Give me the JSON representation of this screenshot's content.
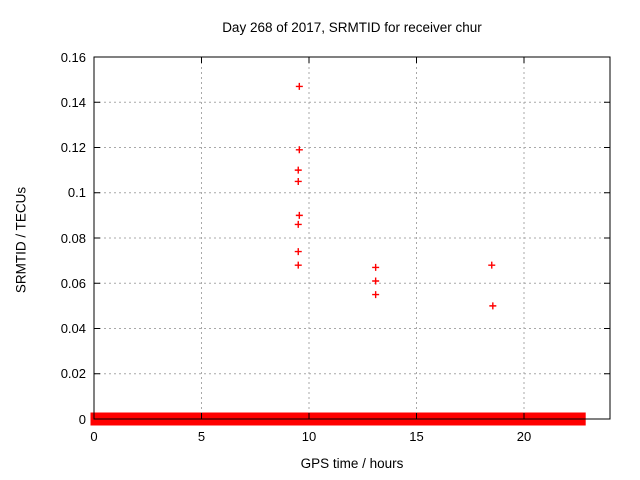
{
  "chart_data": {
    "type": "scatter",
    "title": "Day 268 of 2017, SRMTID for receiver chur",
    "xlabel": "GPS time / hours",
    "ylabel": "SRMTID / TECUs",
    "xlim": [
      0,
      24
    ],
    "ylim": [
      0,
      0.16
    ],
    "xticks": [
      0,
      5,
      10,
      15,
      20
    ],
    "xtick_labels": [
      "0",
      "5",
      "10",
      "15",
      "20"
    ],
    "yticks": [
      0,
      0.02,
      0.04,
      0.06,
      0.08,
      0.1,
      0.12,
      0.14,
      0.16
    ],
    "ytick_labels": [
      "0",
      "0.02",
      "0.04",
      "0.06",
      "0.08",
      "0.1",
      "0.12",
      "0.14",
      "0.16"
    ],
    "grid": true,
    "legend": "none",
    "marker": "plus",
    "marker_color": "#ff0000",
    "grid_color": "#a8a8a8",
    "border_color": "#000000",
    "points": [
      {
        "x": 9.55,
        "y": 0.147
      },
      {
        "x": 9.55,
        "y": 0.119
      },
      {
        "x": 9.5,
        "y": 0.11
      },
      {
        "x": 9.5,
        "y": 0.105
      },
      {
        "x": 9.55,
        "y": 0.09
      },
      {
        "x": 9.5,
        "y": 0.086
      },
      {
        "x": 9.5,
        "y": 0.074
      },
      {
        "x": 9.5,
        "y": 0.068
      },
      {
        "x": 13.1,
        "y": 0.067
      },
      {
        "x": 13.1,
        "y": 0.061
      },
      {
        "x": 13.1,
        "y": 0.055
      },
      {
        "x": 18.5,
        "y": 0.068
      },
      {
        "x": 18.55,
        "y": 0.05
      }
    ],
    "zero_band": {
      "y": 0,
      "x_start": 0,
      "x_end": 22.8,
      "description": "dense overlapping near-zero data points forming a thick red band along y=0"
    }
  }
}
